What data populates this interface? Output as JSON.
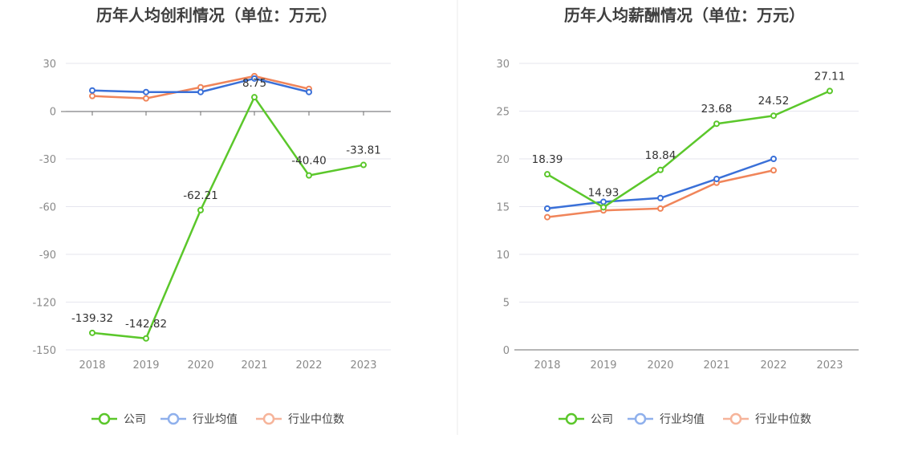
{
  "chart_data": [
    {
      "type": "line",
      "title": "历年人均创利情况（单位：万元）",
      "categories": [
        "2018",
        "2019",
        "2020",
        "2021",
        "2022",
        "2023"
      ],
      "ylim": [
        -150,
        30
      ],
      "yticks": [
        30,
        0,
        -30,
        -60,
        -90,
        -120,
        -150
      ],
      "grid": true,
      "legend_position": "bottom",
      "series": [
        {
          "name": "公司",
          "color": "#5bc72b",
          "values": [
            -139.32,
            -142.82,
            -62.21,
            8.75,
            -40.4,
            -33.81
          ],
          "labels": [
            "-139.32",
            "-142.82",
            "-62.21",
            "8.75",
            "-40.40",
            "-33.81"
          ]
        },
        {
          "name": "行业均值",
          "color": "#3a70d8",
          "values": [
            13.0,
            12.0,
            12.0,
            20.5,
            12.0,
            null
          ]
        },
        {
          "name": "行业中位数",
          "color": "#f0855a",
          "values": [
            9.5,
            8.0,
            15.0,
            22.0,
            14.0,
            null
          ]
        }
      ]
    },
    {
      "type": "line",
      "title": "历年人均薪酬情况（单位：万元）",
      "categories": [
        "2018",
        "2019",
        "2020",
        "2021",
        "2022",
        "2023"
      ],
      "ylim": [
        0,
        30
      ],
      "yticks": [
        30,
        25,
        20,
        15,
        10,
        5,
        0
      ],
      "grid": true,
      "legend_position": "bottom",
      "series": [
        {
          "name": "公司",
          "color": "#5bc72b",
          "values": [
            18.39,
            14.93,
            18.84,
            23.68,
            24.52,
            27.11
          ],
          "labels": [
            "18.39",
            "14.93",
            "18.84",
            "23.68",
            "24.52",
            "27.11"
          ]
        },
        {
          "name": "行业均值",
          "color": "#3a70d8",
          "values": [
            14.8,
            15.5,
            15.9,
            17.9,
            20.0,
            null
          ]
        },
        {
          "name": "行业中位数",
          "color": "#f0855a",
          "values": [
            13.9,
            14.6,
            14.8,
            17.5,
            18.8,
            null
          ]
        }
      ]
    }
  ]
}
